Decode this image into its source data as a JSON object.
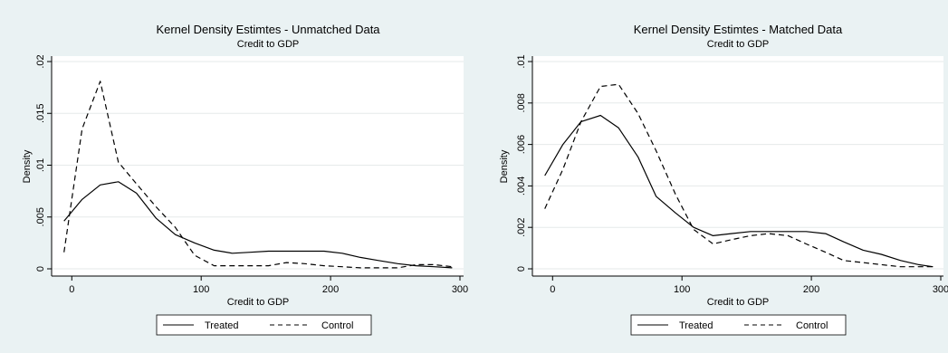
{
  "chart_data": [
    {
      "type": "line",
      "title": "Kernel Density Estimtes - Unmatched Data",
      "subtitle": "Credit to GDP",
      "xlabel": "Credit to GDP",
      "ylabel": "Density",
      "xlim": [
        -10,
        300
      ],
      "ylim": [
        0,
        0.02
      ],
      "xticks": [
        0,
        100,
        200,
        300
      ],
      "xtick_labels": [
        "0",
        "100",
        "200",
        "300"
      ],
      "yticks": [
        0,
        0.005,
        0.01,
        0.015,
        0.02
      ],
      "ytick_labels": [
        "0",
        ".005",
        ".01",
        ".015",
        ".02"
      ],
      "grid": true,
      "legend_position": "bottom",
      "series": [
        {
          "name": "Treated",
          "style": "solid",
          "color": "#000000",
          "x": [
            -6,
            8,
            22,
            36,
            50,
            65,
            80,
            95,
            110,
            124,
            138,
            152,
            166,
            180,
            195,
            209,
            223,
            237,
            252,
            266,
            280,
            294
          ],
          "y": [
            0.0046,
            0.0067,
            0.0081,
            0.0084,
            0.0073,
            0.0049,
            0.0033,
            0.0025,
            0.0018,
            0.0015,
            0.0016,
            0.0017,
            0.0017,
            0.0017,
            0.0017,
            0.0015,
            0.0011,
            0.0008,
            0.0005,
            0.0003,
            0.0002,
            0.0001
          ]
        },
        {
          "name": "Control",
          "style": "dashed",
          "color": "#000000",
          "x": [
            -6,
            8,
            22,
            36,
            50,
            65,
            80,
            95,
            110,
            124,
            138,
            152,
            166,
            180,
            195,
            209,
            223,
            237,
            252,
            266,
            280,
            294
          ],
          "y": [
            0.0016,
            0.0135,
            0.0181,
            0.0103,
            0.0082,
            0.006,
            0.004,
            0.0013,
            0.0003,
            0.0003,
            0.0003,
            0.0003,
            0.0006,
            0.0005,
            0.0003,
            0.0002,
            0.0001,
            0.0001,
            0.0001,
            0.0004,
            0.0004,
            0.0002
          ]
        }
      ]
    },
    {
      "type": "line",
      "title": "Kernel Density Estimtes - Matched Data",
      "subtitle": "Credit to GDP",
      "xlabel": "Credit to GDP",
      "ylabel": "Density",
      "xlim": [
        -10,
        300
      ],
      "ylim": [
        0,
        0.01
      ],
      "xticks": [
        0,
        100,
        200,
        300
      ],
      "xtick_labels": [
        "0",
        "100",
        "200",
        "300"
      ],
      "yticks": [
        0,
        0.002,
        0.004,
        0.006,
        0.008,
        0.01
      ],
      "ytick_labels": [
        "0",
        ".002",
        ".004",
        ".006",
        ".008",
        ".01"
      ],
      "grid": true,
      "legend_position": "bottom",
      "series": [
        {
          "name": "Treated",
          "style": "solid",
          "color": "#000000",
          "x": [
            -6,
            8,
            22,
            37,
            51,
            66,
            80,
            95,
            109,
            124,
            138,
            153,
            167,
            182,
            196,
            211,
            225,
            240,
            254,
            269,
            283,
            294
          ],
          "y": [
            0.0045,
            0.006,
            0.0071,
            0.0074,
            0.0068,
            0.0054,
            0.0035,
            0.0027,
            0.002,
            0.0016,
            0.0017,
            0.0018,
            0.0018,
            0.0018,
            0.0018,
            0.0017,
            0.0013,
            0.0009,
            0.0007,
            0.0004,
            0.0002,
            0.0001
          ]
        },
        {
          "name": "Control",
          "style": "dashed",
          "color": "#000000",
          "x": [
            -6,
            8,
            22,
            37,
            51,
            66,
            80,
            95,
            109,
            124,
            138,
            153,
            167,
            182,
            196,
            211,
            225,
            240,
            254,
            269,
            283,
            294
          ],
          "y": [
            0.0029,
            0.0048,
            0.0071,
            0.0088,
            0.0089,
            0.0075,
            0.0057,
            0.0036,
            0.0019,
            0.0012,
            0.0014,
            0.0016,
            0.0017,
            0.0016,
            0.0012,
            0.0008,
            0.0004,
            0.0003,
            0.0002,
            0.0001,
            0.0001,
            0.0001
          ]
        }
      ]
    }
  ]
}
